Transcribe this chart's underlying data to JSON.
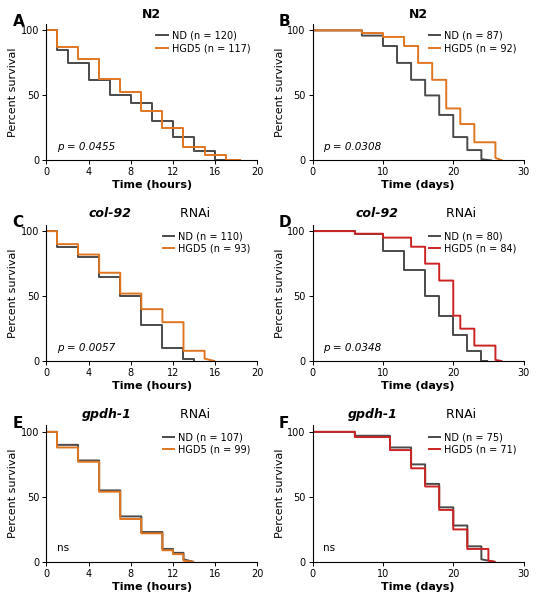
{
  "panels": [
    {
      "label": "A",
      "title_gene": "N2",
      "title_rnai": "",
      "title_style": "normal",
      "xlabel": "Time (hours)",
      "ylabel": "Percent survival",
      "xlim": [
        0,
        20
      ],
      "ylim": [
        0,
        105
      ],
      "xticks": [
        0,
        4,
        8,
        12,
        16,
        20
      ],
      "yticks": [
        0,
        50,
        100
      ],
      "pvalue": "p = 0.0455",
      "pvalue_italic": true,
      "nd_label": "ND (n = 120)",
      "hgd5_label": "HGD5 (n = 117)",
      "nd_x": [
        0,
        0,
        1,
        1,
        2,
        2,
        4,
        4,
        6,
        6,
        8,
        8,
        10,
        10,
        12,
        12,
        14,
        14,
        16,
        16,
        18
      ],
      "nd_y": [
        100,
        100,
        100,
        85,
        85,
        75,
        75,
        62,
        62,
        50,
        50,
        44,
        44,
        30,
        30,
        18,
        18,
        7,
        7,
        0,
        0
      ],
      "hgd5_x": [
        0,
        1,
        1,
        3,
        3,
        5,
        5,
        7,
        7,
        9,
        9,
        11,
        11,
        13,
        13,
        15,
        15,
        17,
        17,
        18.5
      ],
      "hgd5_y": [
        100,
        100,
        87,
        87,
        78,
        78,
        63,
        63,
        53,
        53,
        38,
        38,
        25,
        25,
        10,
        10,
        4,
        4,
        0,
        0
      ]
    },
    {
      "label": "B",
      "title_gene": "N2",
      "title_rnai": "",
      "title_style": "normal",
      "xlabel": "Time (days)",
      "ylabel": "Percent survival",
      "xlim": [
        0,
        30
      ],
      "ylim": [
        0,
        105
      ],
      "xticks": [
        0,
        10,
        20,
        30
      ],
      "yticks": [
        0,
        50,
        100
      ],
      "pvalue": "p = 0.0308",
      "pvalue_italic": true,
      "nd_label": "ND (n = 87)",
      "hgd5_label": "HGD5 (n = 92)",
      "nd_x": [
        0,
        7,
        7,
        10,
        10,
        12,
        12,
        14,
        14,
        16,
        16,
        18,
        18,
        20,
        20,
        22,
        22,
        24,
        24,
        25.5
      ],
      "nd_y": [
        100,
        100,
        96,
        96,
        88,
        88,
        75,
        75,
        62,
        62,
        50,
        50,
        35,
        35,
        18,
        18,
        8,
        8,
        1,
        0
      ],
      "hgd5_x": [
        0,
        7,
        7,
        10,
        10,
        13,
        13,
        15,
        15,
        17,
        17,
        19,
        19,
        21,
        21,
        23,
        23,
        26,
        26,
        27
      ],
      "hgd5_y": [
        100,
        100,
        98,
        98,
        95,
        95,
        88,
        88,
        75,
        75,
        62,
        62,
        40,
        40,
        28,
        28,
        14,
        14,
        2,
        0
      ]
    },
    {
      "label": "C",
      "title_gene": "col-92",
      "title_rnai": " RNAi",
      "title_style": "italic_bold",
      "xlabel": "Time (hours)",
      "ylabel": "Percent survival",
      "xlim": [
        0,
        20
      ],
      "ylim": [
        0,
        105
      ],
      "xticks": [
        0,
        4,
        8,
        12,
        16,
        20
      ],
      "yticks": [
        0,
        50,
        100
      ],
      "pvalue": "p = 0.0057",
      "pvalue_italic": true,
      "nd_label": "ND (n = 110)",
      "hgd5_label": "HGD5 (n = 93)",
      "nd_x": [
        0,
        0,
        1,
        1,
        3,
        3,
        5,
        5,
        7,
        7,
        9,
        9,
        11,
        11,
        13,
        13,
        14,
        14
      ],
      "nd_y": [
        100,
        100,
        100,
        88,
        88,
        80,
        80,
        65,
        65,
        50,
        50,
        28,
        28,
        10,
        10,
        2,
        2,
        0
      ],
      "hgd5_x": [
        0,
        1,
        1,
        3,
        3,
        5,
        5,
        7,
        7,
        9,
        9,
        11,
        11,
        13,
        13,
        15,
        15,
        16
      ],
      "hgd5_y": [
        100,
        100,
        90,
        90,
        82,
        82,
        68,
        68,
        52,
        52,
        40,
        40,
        30,
        30,
        8,
        8,
        2,
        0
      ]
    },
    {
      "label": "D",
      "title_gene": "col-92",
      "title_rnai": " RNAi",
      "title_style": "italic_bold",
      "xlabel": "Time (days)",
      "ylabel": "Percent survival",
      "xlim": [
        0,
        30
      ],
      "ylim": [
        0,
        105
      ],
      "xticks": [
        0,
        10,
        20,
        30
      ],
      "yticks": [
        0,
        50,
        100
      ],
      "pvalue": "p = 0.0348",
      "pvalue_italic": true,
      "nd_label": "ND (n = 80)",
      "hgd5_label": "HGD5 (n = 84)",
      "nd_x": [
        0,
        6,
        6,
        10,
        10,
        13,
        13,
        16,
        16,
        18,
        18,
        20,
        20,
        22,
        22,
        24,
        24,
        25
      ],
      "nd_y": [
        100,
        100,
        98,
        98,
        85,
        85,
        70,
        70,
        50,
        50,
        35,
        35,
        20,
        20,
        8,
        8,
        0,
        0
      ],
      "hgd5_x": [
        0,
        6,
        6,
        10,
        10,
        14,
        14,
        16,
        16,
        18,
        18,
        20,
        20,
        21,
        21,
        23,
        23,
        26,
        26,
        27
      ],
      "hgd5_y": [
        100,
        100,
        98,
        98,
        95,
        95,
        88,
        88,
        75,
        75,
        62,
        62,
        35,
        35,
        25,
        25,
        12,
        12,
        1,
        0
      ]
    },
    {
      "label": "E",
      "title_gene": "gpdh-1",
      "title_rnai": " RNAi",
      "title_style": "italic_bold",
      "xlabel": "Time (hours)",
      "ylabel": "Percent survival",
      "xlim": [
        0,
        20
      ],
      "ylim": [
        0,
        105
      ],
      "xticks": [
        0,
        4,
        8,
        12,
        16,
        20
      ],
      "yticks": [
        0,
        50,
        100
      ],
      "pvalue": "ns",
      "pvalue_italic": false,
      "nd_label": "ND (n = 107)",
      "hgd5_label": "HGD5 (n = 99)",
      "nd_x": [
        0,
        0,
        1,
        1,
        3,
        3,
        5,
        5,
        7,
        7,
        9,
        9,
        11,
        11,
        12,
        12,
        13,
        13,
        14
      ],
      "nd_y": [
        100,
        100,
        100,
        90,
        90,
        78,
        78,
        55,
        55,
        35,
        35,
        23,
        23,
        10,
        10,
        7,
        7,
        2,
        0
      ],
      "hgd5_x": [
        0,
        1,
        1,
        3,
        3,
        5,
        5,
        7,
        7,
        9,
        9,
        11,
        11,
        12,
        12,
        13,
        13,
        14
      ],
      "hgd5_y": [
        100,
        100,
        88,
        88,
        77,
        77,
        54,
        54,
        33,
        33,
        22,
        22,
        9,
        9,
        6,
        6,
        1,
        0
      ]
    },
    {
      "label": "F",
      "title_gene": "gpdh-1",
      "title_rnai": " RNAi",
      "title_style": "italic_bold",
      "xlabel": "Time (days)",
      "ylabel": "Percent survival",
      "xlim": [
        0,
        30
      ],
      "ylim": [
        0,
        105
      ],
      "xticks": [
        0,
        10,
        20,
        30
      ],
      "yticks": [
        0,
        50,
        100
      ],
      "pvalue": "ns",
      "pvalue_italic": false,
      "nd_label": "ND (n = 75)",
      "hgd5_label": "HGD5 (n = 71)",
      "nd_x": [
        0,
        6,
        6,
        11,
        11,
        14,
        14,
        16,
        16,
        18,
        18,
        20,
        20,
        22,
        22,
        24,
        24,
        26
      ],
      "nd_y": [
        100,
        100,
        97,
        97,
        88,
        88,
        75,
        75,
        60,
        60,
        42,
        42,
        28,
        28,
        12,
        12,
        2,
        0
      ],
      "hgd5_x": [
        0,
        6,
        6,
        11,
        11,
        14,
        14,
        16,
        16,
        18,
        18,
        20,
        20,
        22,
        22,
        25,
        25,
        26
      ],
      "hgd5_y": [
        100,
        100,
        96,
        96,
        86,
        86,
        72,
        72,
        58,
        58,
        40,
        40,
        25,
        25,
        10,
        10,
        1,
        0
      ]
    }
  ],
  "nd_color": "#4a4a4a",
  "hgd5_color_A": "#e07520",
  "hgd5_color_B": "#e07520",
  "hgd5_color_C": "#e07520",
  "hgd5_color_D": "#cc2222",
  "hgd5_color_E": "#e07520",
  "hgd5_color_F": "#cc2222",
  "line_width": 1.4,
  "background_color": "#ffffff",
  "font_size_axis_label": 8,
  "font_size_tick": 7,
  "font_size_legend": 7,
  "font_size_title": 9,
  "font_size_pvalue": 7.5,
  "font_size_panel_label": 11
}
